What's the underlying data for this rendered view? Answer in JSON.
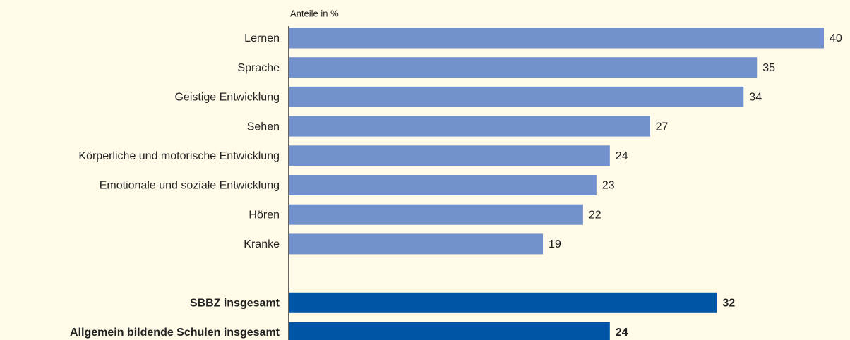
{
  "chart_data": {
    "type": "bar",
    "orientation": "horizontal",
    "axis_label": "Anteile in %",
    "categories": [
      "Lernen",
      "Sprache",
      "Geistige Entwicklung",
      "Sehen",
      "Körperliche und motorische Entwicklung",
      "Emotionale und soziale Entwicklung",
      "Hören",
      "Kranke",
      null,
      "SBBZ insgesamt",
      "Allgemein bildende Schulen insgesamt"
    ],
    "values": [
      40,
      35,
      34,
      27,
      24,
      23,
      22,
      19,
      null,
      32,
      24
    ],
    "colors": [
      "#7392cd",
      "#7392cd",
      "#7392cd",
      "#7392cd",
      "#7392cd",
      "#7392cd",
      "#7392cd",
      "#7392cd",
      null,
      "#0056a4",
      "#0056a4"
    ],
    "emphasis": [
      false,
      false,
      false,
      false,
      false,
      false,
      false,
      false,
      false,
      true,
      true
    ],
    "xlim": [
      0,
      40
    ]
  }
}
